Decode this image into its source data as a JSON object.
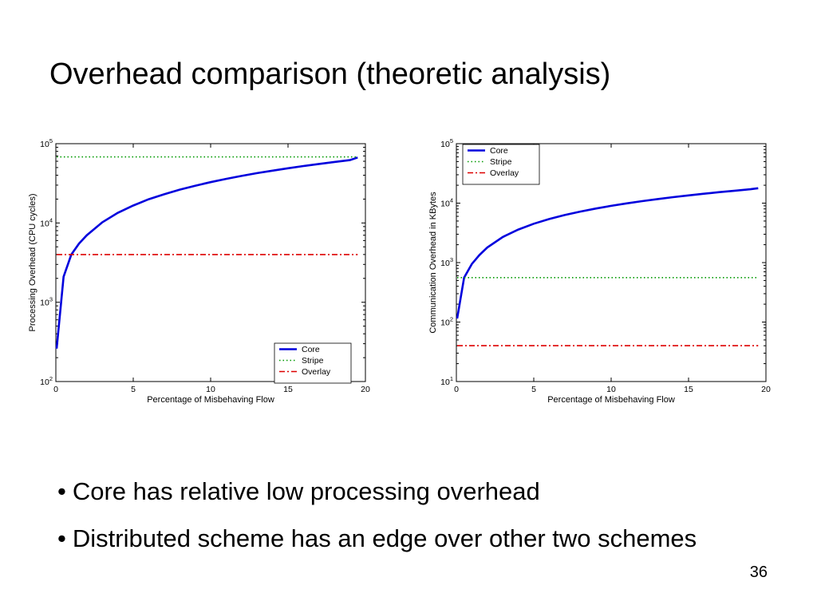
{
  "slide": {
    "title": "Overhead comparison (theoretic analysis)",
    "bullets": [
      "Core has relative low processing overhead",
      "Distributed scheme has an edge over other two schemes"
    ],
    "bullet_symbol": "•",
    "page_number": "36"
  },
  "chart_data": [
    {
      "type": "line",
      "xlabel": "Percentage of Misbehaving Flow",
      "ylabel": "Processing Overhead (CPU cycles)",
      "xlim": [
        0,
        20
      ],
      "ylim": [
        100,
        100000
      ],
      "yscale": "log",
      "xticks": [
        "0",
        "5",
        "10",
        "15",
        "20"
      ],
      "yticks": [
        {
          "base": "10",
          "exp": "2"
        },
        {
          "base": "10",
          "exp": "3"
        },
        {
          "base": "10",
          "exp": "4"
        },
        {
          "base": "10",
          "exp": "5"
        }
      ],
      "legend_position": "bottom-right",
      "grid": false,
      "series": [
        {
          "name": "Core",
          "color": "#0000dd",
          "style": "solid",
          "x": [
            0.05,
            0.5,
            1,
            1.5,
            2,
            3,
            4,
            5,
            6,
            7,
            8,
            9,
            10,
            11,
            12,
            13,
            14,
            15,
            16,
            17,
            18,
            19,
            19.5
          ],
          "y": [
            260,
            2100,
            4000,
            5500,
            7000,
            10200,
            13400,
            16600,
            19900,
            23000,
            26300,
            29500,
            32700,
            36000,
            39200,
            42500,
            45700,
            49000,
            52200,
            55500,
            58800,
            62000,
            67000
          ]
        },
        {
          "name": "Stripe",
          "color": "#009900",
          "style": "dotted",
          "x": [
            0.05,
            19.5
          ],
          "y": [
            68000,
            68000
          ]
        },
        {
          "name": "Overlay",
          "color": "#dd0000",
          "style": "dashdot",
          "x": [
            0.05,
            19.5
          ],
          "y": [
            4000,
            4000
          ]
        }
      ]
    },
    {
      "type": "line",
      "xlabel": "Percentage of Misbehaving Flow",
      "ylabel": "Communication Overhead in KBytes",
      "xlim": [
        0,
        20
      ],
      "ylim": [
        10,
        100000
      ],
      "yscale": "log",
      "xticks": [
        "0",
        "5",
        "10",
        "15",
        "20"
      ],
      "yticks": [
        {
          "base": "10",
          "exp": "1"
        },
        {
          "base": "10",
          "exp": "2"
        },
        {
          "base": "10",
          "exp": "3"
        },
        {
          "base": "10",
          "exp": "4"
        },
        {
          "base": "10",
          "exp": "5"
        }
      ],
      "legend_position": "top-left",
      "grid": false,
      "series": [
        {
          "name": "Core",
          "color": "#0000dd",
          "style": "solid",
          "x": [
            0.05,
            0.5,
            1,
            1.5,
            2,
            3,
            4,
            5,
            6,
            7,
            8,
            9,
            10,
            11,
            12,
            13,
            14,
            15,
            16,
            17,
            18,
            19,
            19.5
          ],
          "y": [
            115,
            560,
            950,
            1350,
            1800,
            2700,
            3600,
            4500,
            5400,
            6300,
            7200,
            8100,
            9000,
            9900,
            10800,
            11700,
            12600,
            13500,
            14400,
            15300,
            16200,
            17100,
            17800
          ]
        },
        {
          "name": "Stripe",
          "color": "#009900",
          "style": "dotted",
          "x": [
            0.05,
            19.5
          ],
          "y": [
            560,
            560
          ]
        },
        {
          "name": "Overlay",
          "color": "#dd0000",
          "style": "dashdot",
          "x": [
            0.05,
            19.5
          ],
          "y": [
            40,
            40
          ]
        }
      ]
    }
  ]
}
